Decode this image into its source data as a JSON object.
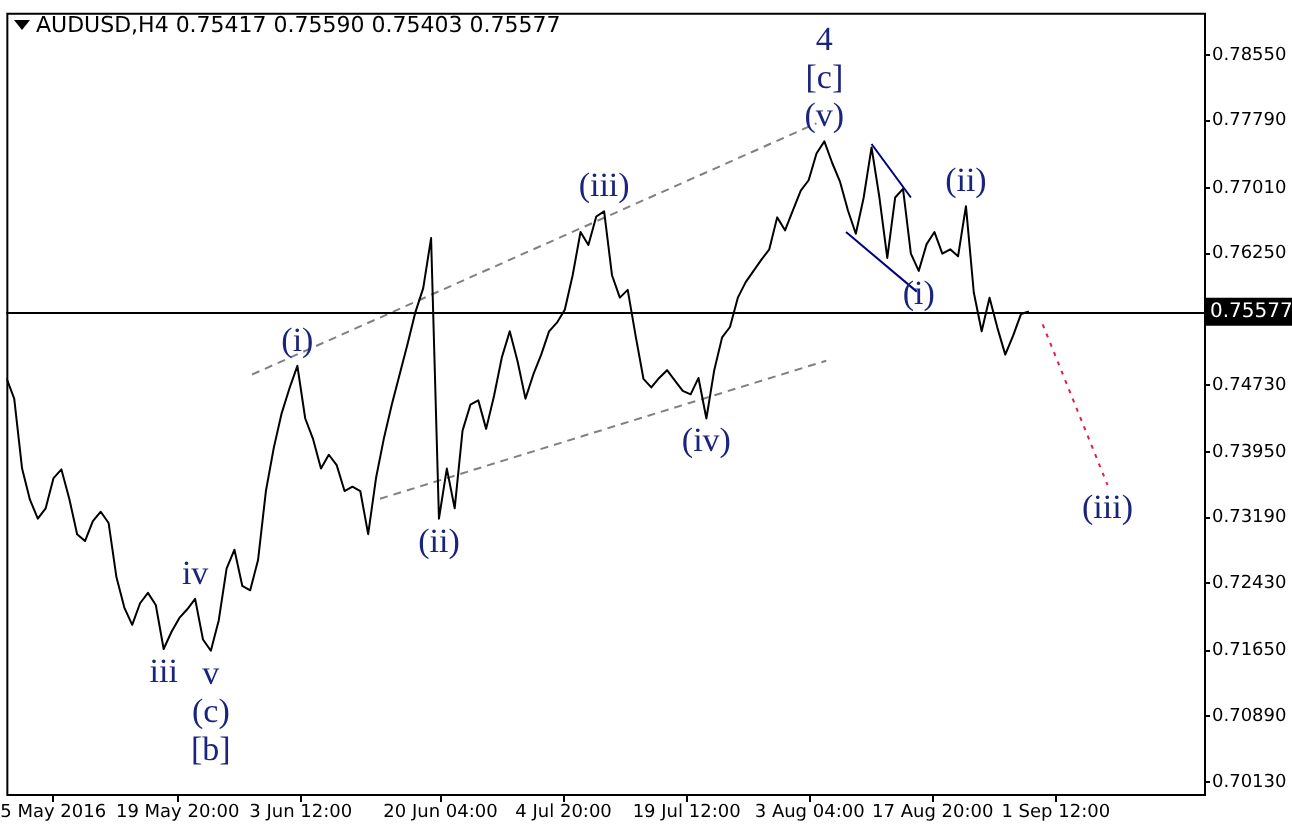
{
  "chart_data": {
    "type": "line",
    "title": "AUDUSD,H4 0.75417 0.75590 0.75403 0.75577",
    "xlim": [
      "2016-04-29T10:00",
      "2016-09-19T04:00"
    ],
    "xticks": [
      {
        "value": "2016-05-05",
        "label": "5 May 2016"
      },
      {
        "value": "2016-05-19T20:00",
        "label": "19 May 20:00"
      },
      {
        "value": "2016-06-03T12:00",
        "label": "3 Jun 12:00"
      },
      {
        "value": "2016-06-20T04:00",
        "label": "20 Jun 04:00"
      },
      {
        "value": "2016-07-04T20:00",
        "label": "4 Jul 20:00"
      },
      {
        "value": "2016-07-19T12:00",
        "label": "19 Jul 12:00"
      },
      {
        "value": "2016-08-03T04:00",
        "label": "3 Aug 04:00"
      },
      {
        "value": "2016-08-17T20:00",
        "label": "17 Aug 20:00"
      },
      {
        "value": "2016-09-01T12:00",
        "label": "1 Sep 12:00"
      }
    ],
    "ylim": [
      0.6999,
      0.7904
    ],
    "yticks": [
      {
        "value": 0.7855,
        "label": "0.78550"
      },
      {
        "value": 0.7779,
        "label": "0.77790"
      },
      {
        "value": 0.7701,
        "label": "0.77010"
      },
      {
        "value": 0.7625,
        "label": "0.76250"
      },
      {
        "value": 0.7473,
        "label": "0.74730"
      },
      {
        "value": 0.7395,
        "label": "0.73950"
      },
      {
        "value": 0.7319,
        "label": "0.73190"
      },
      {
        "value": 0.7243,
        "label": "0.72430"
      },
      {
        "value": 0.7165,
        "label": "0.71650"
      },
      {
        "value": 0.7089,
        "label": "0.70890"
      },
      {
        "value": 0.7013,
        "label": "0.70130"
      }
    ],
    "grid": false,
    "legend": false,
    "marker": "none",
    "series": [
      {
        "color": "#000000",
        "line_style": "solid",
        "x": [
          "2016-04-29T10:00",
          "2016-04-30T08:30",
          "2016-05-01T07:00",
          "2016-05-02T05:30",
          "2016-05-03T04:00",
          "2016-05-04T02:30",
          "2016-05-05T01:00",
          "2016-05-05T23:30",
          "2016-05-06T22:00",
          "2016-05-07T20:30",
          "2016-05-08T19:00",
          "2016-05-09T17:30",
          "2016-05-10T16:00",
          "2016-05-11T14:30",
          "2016-05-12T13:00",
          "2016-05-13T11:30",
          "2016-05-14T10:00",
          "2016-05-15T08:30",
          "2016-05-16T07:00",
          "2016-05-17T05:30",
          "2016-05-18T04:00",
          "2016-05-19T02:30",
          "2016-05-20T01:00",
          "2016-05-20T23:30",
          "2016-05-21T22:00",
          "2016-05-22T20:30",
          "2016-05-23T19:00",
          "2016-05-24T17:30",
          "2016-05-25T16:00",
          "2016-05-26T14:30",
          "2016-05-27T13:00",
          "2016-05-28T11:30",
          "2016-05-29T10:00",
          "2016-05-30T08:30",
          "2016-05-31T07:00",
          "2016-06-01T05:30",
          "2016-06-02T04:00",
          "2016-06-03T02:30",
          "2016-06-04T01:00",
          "2016-06-04T23:30",
          "2016-06-05T22:00",
          "2016-06-06T20:30",
          "2016-06-07T19:00",
          "2016-06-08T17:30",
          "2016-06-09T16:00",
          "2016-06-10T14:30",
          "2016-06-11T13:00",
          "2016-06-12T11:30",
          "2016-06-13T10:00",
          "2016-06-14T08:30",
          "2016-06-15T07:00",
          "2016-06-16T05:30",
          "2016-06-17T04:00",
          "2016-06-18T02:30",
          "2016-06-19T01:00",
          "2016-06-19T23:30",
          "2016-06-20T22:00",
          "2016-06-21T20:30",
          "2016-06-22T19:00",
          "2016-06-23T17:30",
          "2016-06-24T16:00",
          "2016-06-25T14:30",
          "2016-06-26T13:00",
          "2016-06-27T11:30",
          "2016-06-28T10:00",
          "2016-06-29T08:30",
          "2016-06-30T07:00",
          "2016-07-01T05:30",
          "2016-07-02T04:00",
          "2016-07-03T02:30",
          "2016-07-04T01:00",
          "2016-07-04T23:30",
          "2016-07-05T22:00",
          "2016-07-06T20:30",
          "2016-07-07T19:00",
          "2016-07-08T17:30",
          "2016-07-09T16:00",
          "2016-07-10T14:30",
          "2016-07-11T13:00",
          "2016-07-12T11:30",
          "2016-07-13T10:00",
          "2016-07-14T08:30",
          "2016-07-15T07:00",
          "2016-07-16T05:30",
          "2016-07-17T04:00",
          "2016-07-18T02:30",
          "2016-07-19T01:00",
          "2016-07-19T23:30",
          "2016-07-20T22:00",
          "2016-07-21T20:30",
          "2016-07-22T19:00",
          "2016-07-23T17:30",
          "2016-07-24T16:00",
          "2016-07-25T14:30",
          "2016-07-26T13:00",
          "2016-07-27T11:30",
          "2016-07-28T10:00",
          "2016-07-29T08:30",
          "2016-07-30T07:00",
          "2016-07-31T05:30",
          "2016-08-01T04:00",
          "2016-08-02T02:30",
          "2016-08-03T01:00",
          "2016-08-03T23:30",
          "2016-08-04T22:00",
          "2016-08-05T20:30",
          "2016-08-06T19:00",
          "2016-08-07T17:30",
          "2016-08-08T16:00",
          "2016-08-09T14:30",
          "2016-08-10T13:00",
          "2016-08-11T11:30",
          "2016-08-12T10:00",
          "2016-08-13T08:30",
          "2016-08-14T07:00",
          "2016-08-15T05:30",
          "2016-08-16T04:00",
          "2016-08-17T02:30",
          "2016-08-18T01:00",
          "2016-08-18T23:30",
          "2016-08-19T22:00",
          "2016-08-20T20:30",
          "2016-08-21T19:00",
          "2016-08-22T17:30",
          "2016-08-23T16:00",
          "2016-08-24T14:30",
          "2016-08-25T13:00",
          "2016-08-26T11:30",
          "2016-08-27T10:00",
          "2016-08-28T08:30",
          "2016-08-29T07:00"
        ],
        "values": [
          0.7481,
          0.7457,
          0.7376,
          0.734,
          0.7318,
          0.733,
          0.7365,
          0.7375,
          0.7341,
          0.73,
          0.7292,
          0.7315,
          0.7326,
          0.7313,
          0.725,
          0.7215,
          0.7195,
          0.722,
          0.7232,
          0.7218,
          0.7167,
          0.7187,
          0.7203,
          0.7213,
          0.7225,
          0.7178,
          0.7165,
          0.72,
          0.726,
          0.7282,
          0.724,
          0.7235,
          0.727,
          0.735,
          0.74,
          0.744,
          0.7469,
          0.7495,
          0.7434,
          0.741,
          0.7376,
          0.7392,
          0.738,
          0.735,
          0.7355,
          0.735,
          0.73,
          0.7365,
          0.7411,
          0.745,
          0.7485,
          0.752,
          0.7557,
          0.7585,
          0.7643,
          0.7318,
          0.7376,
          0.733,
          0.742,
          0.745,
          0.7455,
          0.7422,
          0.746,
          0.7505,
          0.7535,
          0.75,
          0.7457,
          0.7485,
          0.7508,
          0.7535,
          0.7545,
          0.756,
          0.76,
          0.765,
          0.7635,
          0.7668,
          0.7674,
          0.76,
          0.7574,
          0.7583,
          0.753,
          0.748,
          0.747,
          0.7481,
          0.749,
          0.7478,
          0.7466,
          0.7462,
          0.7481,
          0.7434,
          0.749,
          0.7528,
          0.754,
          0.7574,
          0.7592,
          0.7605,
          0.7618,
          0.763,
          0.7667,
          0.7652,
          0.7675,
          0.7698,
          0.771,
          0.7741,
          0.7755,
          0.773,
          0.7708,
          0.7675,
          0.7648,
          0.769,
          0.7748,
          0.769,
          0.762,
          0.769,
          0.77,
          0.7625,
          0.7605,
          0.7636,
          0.765,
          0.7625,
          0.763,
          0.7622,
          0.768,
          0.758,
          0.7535,
          0.7574,
          0.7539,
          0.7508,
          0.753,
          0.7555,
          0.7558
        ]
      },
      {
        "color": "#808080",
        "line_style": "dashed",
        "x": [
          "2016-05-28T17:00",
          "2016-08-03T23:30"
        ],
        "values": [
          0.7485,
          0.7776
        ]
      },
      {
        "color": "#808080",
        "line_style": "dashed",
        "x": [
          "2016-06-12T23:00",
          "2016-08-05T03:30"
        ],
        "values": [
          0.7341,
          0.7501
        ]
      },
      {
        "color": "#000080",
        "line_style": "solid",
        "x": [
          "2016-08-10T13:00",
          "2016-08-15T05:30"
        ],
        "values": [
          0.7752,
          0.769
        ]
      },
      {
        "color": "#000080",
        "line_style": "solid",
        "x": [
          "2016-08-07T12:00",
          "2016-08-15T22:30"
        ],
        "values": [
          0.765,
          0.7581
        ]
      },
      {
        "color": "#e0204a",
        "line_style": "dotted",
        "x": [
          "2016-08-30T22:30",
          "2016-09-07T16:00"
        ],
        "values": [
          0.7543,
          0.7357
        ]
      }
    ],
    "ref_lines": [
      {
        "axis": "y",
        "value": 0.75577,
        "label": "0.75577",
        "color": "#000000"
      }
    ],
    "annotations": [
      {
        "text": "(v)",
        "x": "2016-08-04T22:00",
        "y": 0.7755
      },
      {
        "text": "[c]",
        "x": "2016-08-04T22:00",
        "y": 0.7755
      },
      {
        "text": "4",
        "x": "2016-08-04T22:00",
        "y": 0.7755
      },
      {
        "text": "(ii)",
        "x": "2016-08-21T19:00",
        "y": 0.768
      },
      {
        "text": "(i)",
        "x": "2016-08-16T04:00",
        "y": 0.7605
      },
      {
        "text": "(iii)",
        "x": "2016-07-09T16:00",
        "y": 0.7674
      },
      {
        "text": "(iv)",
        "x": "2016-07-21T20:30",
        "y": 0.7434
      },
      {
        "text": "(iii)",
        "x": "2016-09-07T16:00",
        "y": 0.7357
      },
      {
        "text": "(i)",
        "x": "2016-06-03T02:30",
        "y": 0.7495
      },
      {
        "text": "(ii)",
        "x": "2016-06-19T23:30",
        "y": 0.7318
      },
      {
        "text": "iv",
        "x": "2016-05-21T22:00",
        "y": 0.7225
      },
      {
        "text": "iii",
        "x": "2016-05-18T04:00",
        "y": 0.7167
      },
      {
        "text": "v",
        "x": "2016-05-23T19:00",
        "y": 0.7165
      },
      {
        "text": "(c)",
        "x": "2016-05-23T19:00",
        "y": 0.7165
      },
      {
        "text": "[b]",
        "x": "2016-05-23T19:00",
        "y": 0.7165
      }
    ]
  }
}
